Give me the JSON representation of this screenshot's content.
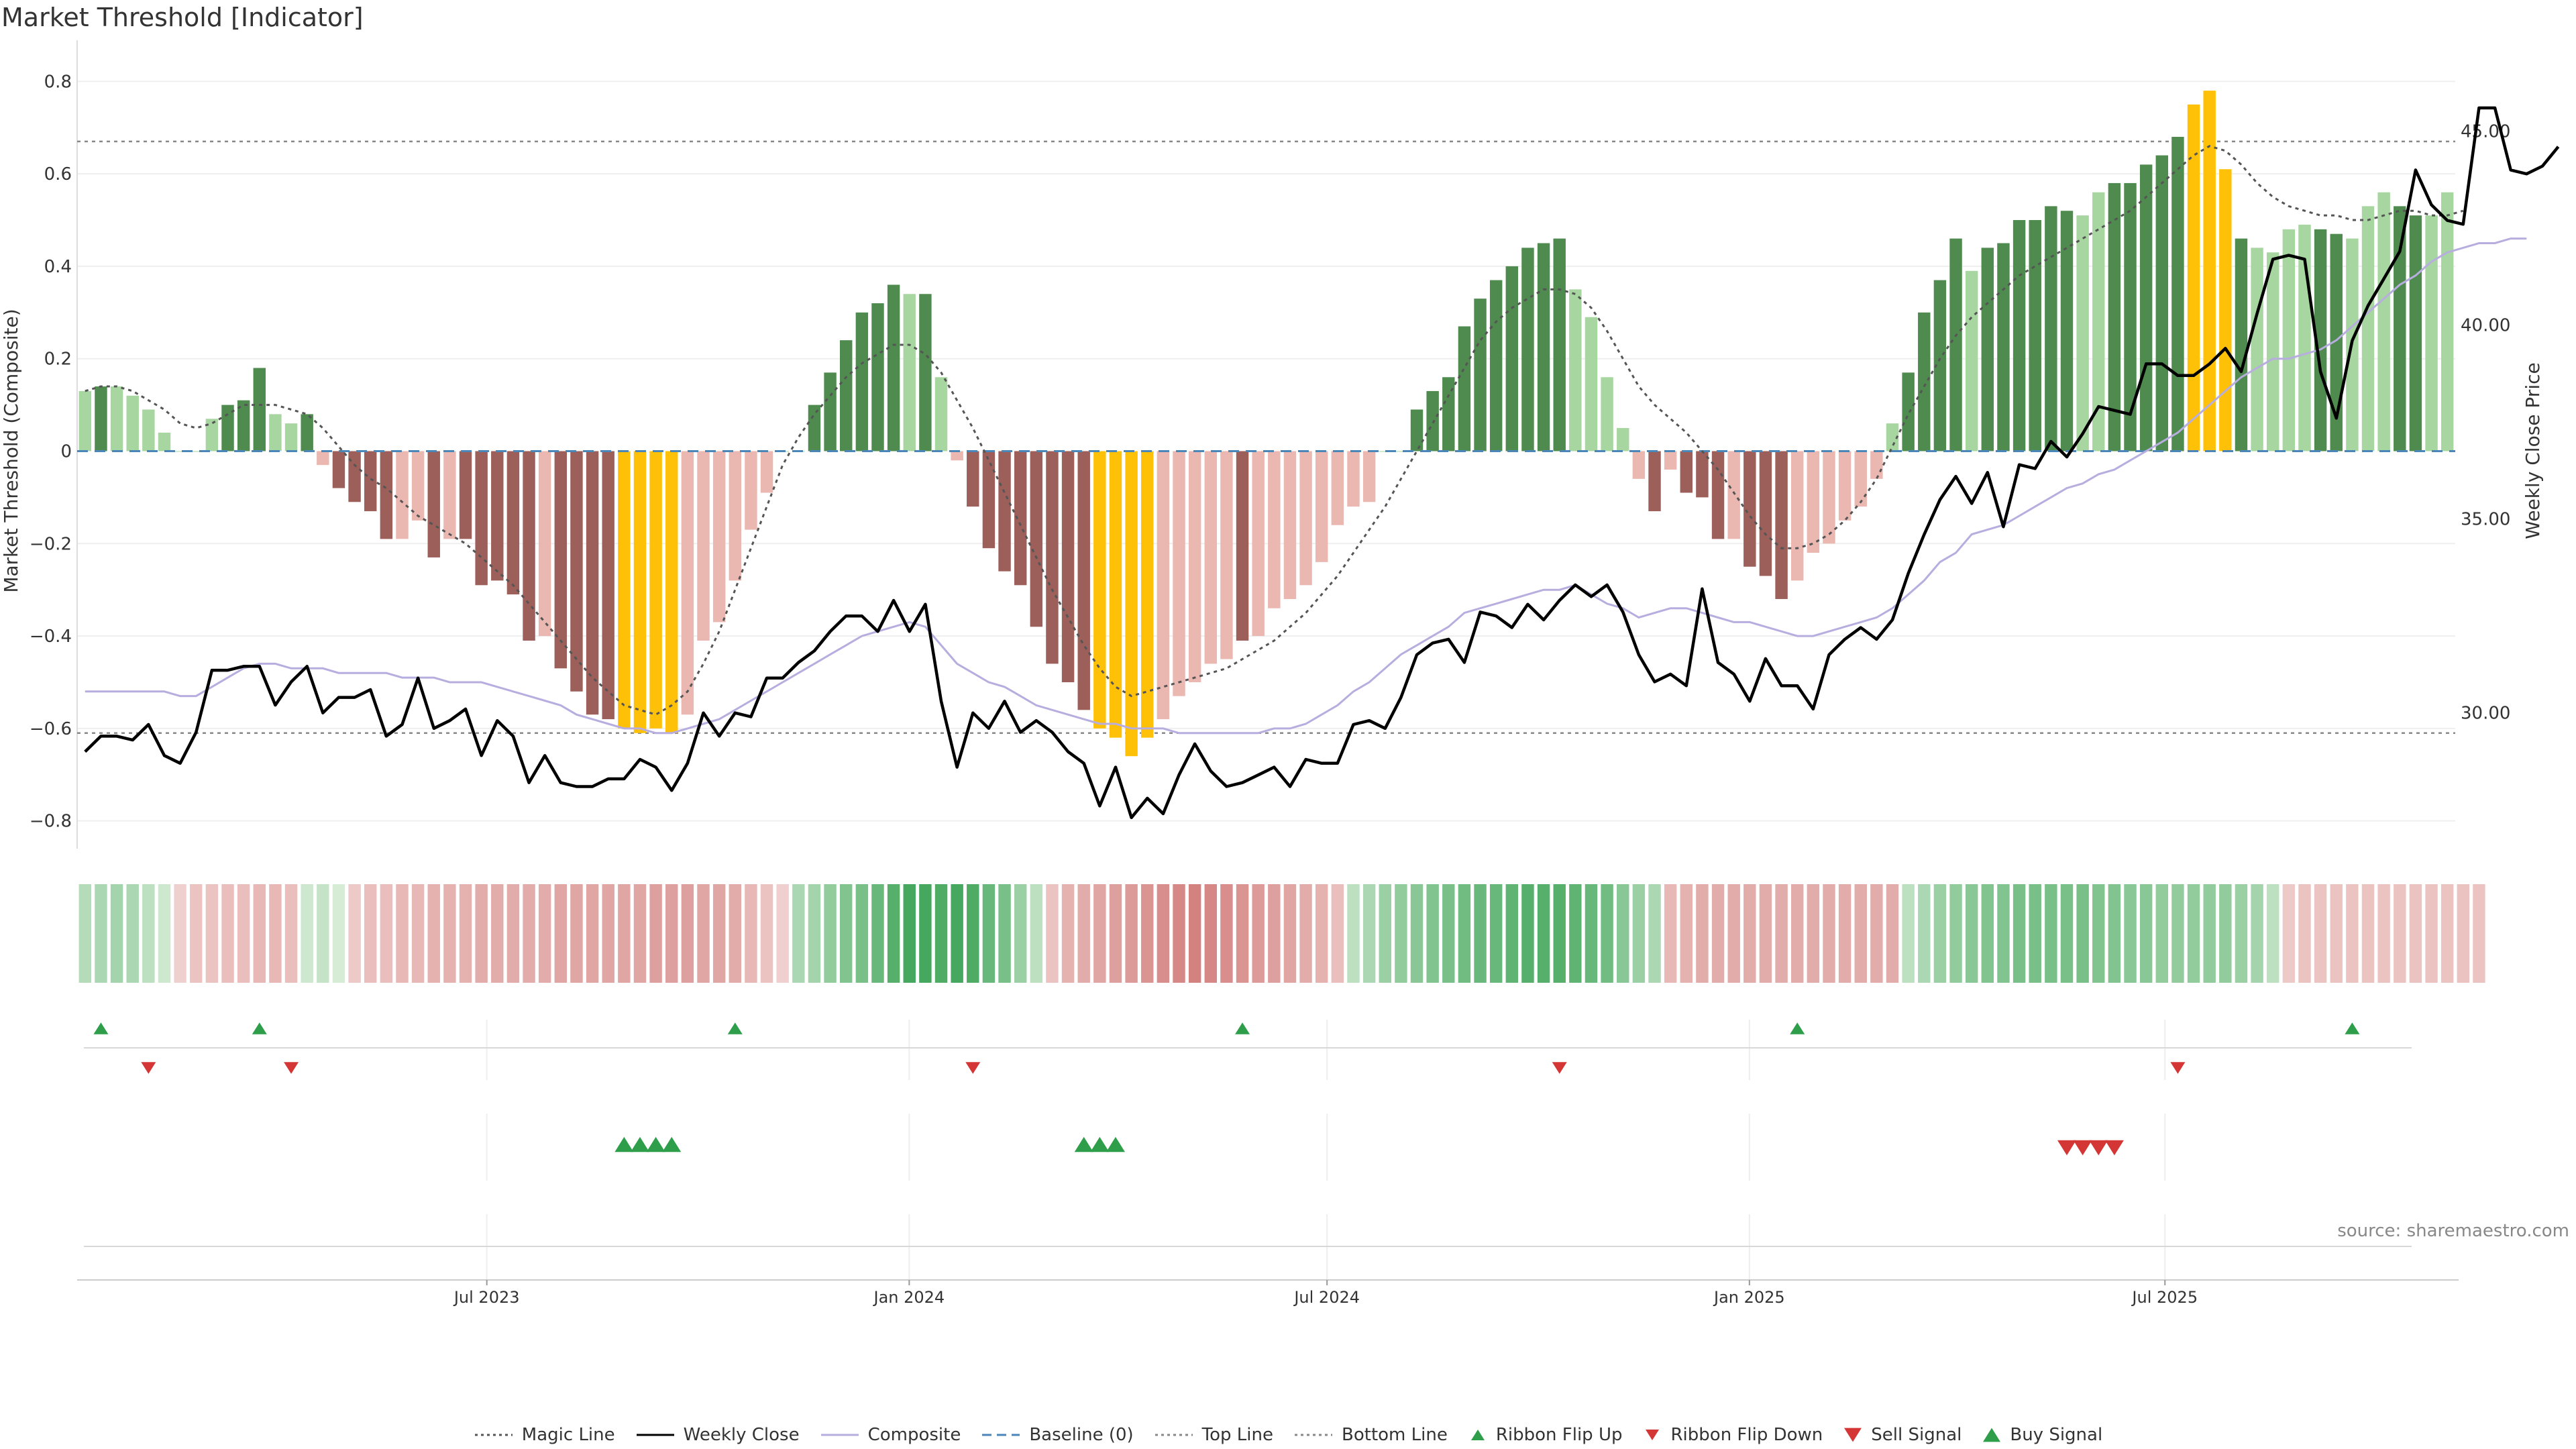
{
  "title": "Market Threshold [Indicator]",
  "source": "source: sharemaestro.com",
  "colors": {
    "bull_dark": "#4f8a4f",
    "bull_light": "#a7d6a0",
    "bear_dark": "#9c5f5a",
    "bear_light": "#eab7b1",
    "extreme": "#ffc107",
    "close": "#000000",
    "composite": "#b7addf",
    "magic": "#555555",
    "baseline": "#4a86b8",
    "up": "#2e9e4a",
    "down": "#d43535"
  },
  "legend": [
    {
      "label": "Magic Line",
      "kind": "dotted",
      "color": "#555555"
    },
    {
      "label": "Weekly Close",
      "kind": "solid",
      "color": "#000000"
    },
    {
      "label": "Composite",
      "kind": "solid",
      "color": "#b7addf"
    },
    {
      "label": "Baseline (0)",
      "kind": "dashed",
      "color": "#4a86b8"
    },
    {
      "label": "Top Line",
      "kind": "dotted",
      "color": "#888888"
    },
    {
      "label": "Bottom Line",
      "kind": "dotted",
      "color": "#888888"
    },
    {
      "label": "Ribbon Flip Up",
      "kind": "tri-up",
      "color": "#2e9e4a"
    },
    {
      "label": "Ribbon Flip Down",
      "kind": "tri-down",
      "color": "#d43535"
    },
    {
      "label": "Sell Signal",
      "kind": "tri-down-big",
      "color": "#d43535"
    },
    {
      "label": "Buy Signal",
      "kind": "tri-up-big",
      "color": "#2e9e4a"
    }
  ],
  "chart_data": {
    "type": "bar",
    "title": "Market Threshold [Indicator]",
    "ylabel": "Market Threshold (Composite)",
    "y2label": "Weekly Close Price",
    "ylim": [
      -0.86,
      0.86
    ],
    "y2lim": [
      26.5,
      47.0
    ],
    "yticks": [
      "0.8",
      "0.6",
      "0.4",
      "0.2",
      "0",
      "−0.2",
      "−0.4",
      "−0.6",
      "−0.8"
    ],
    "y2ticks": [
      "45.00",
      "40.00",
      "35.00",
      "30.00"
    ],
    "top_line": 0.67,
    "bottom_line": -0.61,
    "x_axis": {
      "start": "2023-01-07",
      "end": "2025-11-01",
      "ticks": [
        "Jul 2023",
        "Jan 2024",
        "Jul 2024",
        "Jan 2025",
        "Jul 2025"
      ]
    },
    "bars": [
      0.13,
      0.14,
      0.14,
      0.12,
      0.09,
      0.04,
      0.0,
      0.0,
      0.07,
      0.1,
      0.11,
      0.18,
      0.08,
      0.06,
      0.08,
      -0.03,
      -0.08,
      -0.11,
      -0.13,
      -0.19,
      -0.19,
      -0.15,
      -0.23,
      -0.19,
      -0.19,
      -0.29,
      -0.28,
      -0.31,
      -0.41,
      -0.4,
      -0.47,
      -0.52,
      -0.57,
      -0.58,
      -0.6,
      -0.61,
      -0.6,
      -0.61,
      -0.57,
      -0.41,
      -0.37,
      -0.28,
      -0.17,
      -0.09,
      0.0,
      0.0,
      0.1,
      0.17,
      0.24,
      0.3,
      0.32,
      0.36,
      0.34,
      0.34,
      0.16,
      -0.02,
      -0.12,
      -0.21,
      -0.26,
      -0.29,
      -0.38,
      -0.46,
      -0.5,
      -0.56,
      -0.6,
      -0.62,
      -0.66,
      -0.62,
      -0.58,
      -0.53,
      -0.5,
      -0.46,
      -0.45,
      -0.41,
      -0.4,
      -0.34,
      -0.32,
      -0.29,
      -0.24,
      -0.16,
      -0.12,
      -0.11,
      0.0,
      0.0,
      0.09,
      0.13,
      0.16,
      0.27,
      0.33,
      0.37,
      0.4,
      0.44,
      0.45,
      0.46,
      0.35,
      0.29,
      0.16,
      0.05,
      -0.06,
      -0.13,
      -0.04,
      -0.09,
      -0.1,
      -0.19,
      -0.19,
      -0.25,
      -0.27,
      -0.32,
      -0.28,
      -0.22,
      -0.2,
      -0.15,
      -0.12,
      -0.06,
      0.06,
      0.17,
      0.3,
      0.37,
      0.46,
      0.39,
      0.44,
      0.45,
      0.5,
      0.5,
      0.53,
      0.52,
      0.51,
      0.56,
      0.58,
      0.58,
      0.62,
      0.64,
      0.68,
      0.75,
      0.78,
      0.61,
      0.46,
      0.44,
      0.43,
      0.48,
      0.49,
      0.48,
      0.47,
      0.46,
      0.53,
      0.56,
      0.53,
      0.51,
      0.51,
      0.56
    ],
    "bar_shade": [
      0,
      1,
      0,
      0,
      0,
      0,
      0,
      0,
      0,
      1,
      1,
      1,
      0,
      0,
      1,
      0,
      1,
      1,
      1,
      1,
      0,
      0,
      1,
      0,
      1,
      1,
      1,
      1,
      1,
      0,
      1,
      1,
      1,
      1,
      2,
      2,
      2,
      2,
      0,
      0,
      0,
      0,
      0,
      0,
      0,
      0,
      1,
      1,
      1,
      1,
      1,
      1,
      0,
      1,
      0,
      0,
      1,
      1,
      1,
      1,
      1,
      1,
      1,
      1,
      2,
      2,
      2,
      2,
      0,
      0,
      0,
      0,
      0,
      1,
      0,
      0,
      0,
      0,
      0,
      0,
      0,
      0,
      0,
      0,
      1,
      1,
      1,
      1,
      1,
      1,
      1,
      1,
      1,
      1,
      0,
      0,
      0,
      0,
      0,
      1,
      0,
      1,
      1,
      1,
      0,
      1,
      1,
      1,
      0,
      0,
      0,
      0,
      0,
      0,
      0,
      1,
      1,
      1,
      1,
      0,
      1,
      1,
      1,
      1,
      1,
      1,
      0,
      0,
      1,
      1,
      1,
      1,
      1,
      2,
      2,
      2,
      1,
      0,
      0,
      0,
      0,
      1,
      1,
      0,
      0,
      0,
      1,
      1,
      0,
      0,
      0,
      1
    ],
    "close": [
      29.0,
      29.4,
      29.4,
      29.3,
      29.7,
      28.9,
      28.7,
      29.5,
      31.1,
      31.1,
      31.2,
      31.2,
      30.2,
      30.8,
      31.2,
      30.0,
      30.4,
      30.4,
      30.6,
      29.4,
      29.7,
      30.9,
      29.6,
      29.8,
      30.1,
      28.9,
      29.8,
      29.4,
      28.2,
      28.9,
      28.2,
      28.1,
      28.1,
      28.3,
      28.3,
      28.8,
      28.6,
      28.0,
      28.7,
      30.0,
      29.4,
      30.0,
      29.9,
      30.9,
      30.9,
      31.3,
      31.6,
      32.1,
      32.5,
      32.5,
      32.1,
      32.9,
      32.1,
      32.8,
      30.3,
      28.6,
      30.0,
      29.6,
      30.3,
      29.5,
      29.8,
      29.5,
      29.0,
      28.7,
      27.6,
      28.6,
      27.3,
      27.8,
      27.4,
      28.4,
      29.2,
      28.5,
      28.1,
      28.2,
      28.4,
      28.6,
      28.1,
      28.8,
      28.7,
      28.7,
      29.7,
      29.8,
      29.6,
      30.4,
      31.5,
      31.8,
      31.9,
      31.3,
      32.6,
      32.5,
      32.2,
      32.8,
      32.4,
      32.9,
      33.3,
      33.0,
      33.3,
      32.6,
      31.5,
      30.8,
      31.0,
      30.7,
      33.2,
      31.3,
      31.0,
      30.3,
      31.4,
      30.7,
      30.7,
      30.1,
      31.5,
      31.9,
      32.2,
      31.9,
      32.4,
      33.6,
      34.6,
      35.5,
      36.1,
      35.4,
      36.2,
      34.8,
      36.4,
      36.3,
      37.0,
      36.6,
      37.2,
      37.9,
      37.8,
      37.7,
      39.0,
      39.0,
      38.7,
      38.7,
      39.0,
      39.4,
      38.8,
      40.3,
      41.7,
      41.8,
      41.7,
      38.8,
      37.6,
      39.6,
      40.5,
      41.2,
      41.9,
      44.0,
      43.1,
      42.7,
      42.6,
      45.6,
      45.6,
      44.0,
      43.9,
      44.1,
      44.6
    ],
    "composite": [
      -0.52,
      -0.52,
      -0.52,
      -0.52,
      -0.52,
      -0.52,
      -0.53,
      -0.53,
      -0.51,
      -0.49,
      -0.47,
      -0.46,
      -0.46,
      -0.47,
      -0.47,
      -0.47,
      -0.48,
      -0.48,
      -0.48,
      -0.48,
      -0.49,
      -0.49,
      -0.49,
      -0.5,
      -0.5,
      -0.5,
      -0.51,
      -0.52,
      -0.53,
      -0.54,
      -0.55,
      -0.57,
      -0.58,
      -0.59,
      -0.6,
      -0.6,
      -0.61,
      -0.61,
      -0.6,
      -0.59,
      -0.58,
      -0.56,
      -0.54,
      -0.52,
      -0.5,
      -0.48,
      -0.46,
      -0.44,
      -0.42,
      -0.4,
      -0.39,
      -0.38,
      -0.37,
      -0.38,
      -0.42,
      -0.46,
      -0.48,
      -0.5,
      -0.51,
      -0.53,
      -0.55,
      -0.56,
      -0.57,
      -0.58,
      -0.59,
      -0.59,
      -0.6,
      -0.6,
      -0.6,
      -0.61,
      -0.61,
      -0.61,
      -0.61,
      -0.61,
      -0.61,
      -0.6,
      -0.6,
      -0.59,
      -0.57,
      -0.55,
      -0.52,
      -0.5,
      -0.47,
      -0.44,
      -0.42,
      -0.4,
      -0.38,
      -0.35,
      -0.34,
      -0.33,
      -0.32,
      -0.31,
      -0.3,
      -0.3,
      -0.29,
      -0.31,
      -0.33,
      -0.34,
      -0.36,
      -0.35,
      -0.34,
      -0.34,
      -0.35,
      -0.36,
      -0.37,
      -0.37,
      -0.38,
      -0.39,
      -0.4,
      -0.4,
      -0.39,
      -0.38,
      -0.37,
      -0.36,
      -0.34,
      -0.31,
      -0.28,
      -0.24,
      -0.22,
      -0.18,
      -0.17,
      -0.16,
      -0.14,
      -0.12,
      -0.1,
      -0.08,
      -0.07,
      -0.05,
      -0.04,
      -0.02,
      0.0,
      0.02,
      0.04,
      0.07,
      0.1,
      0.13,
      0.16,
      0.18,
      0.2,
      0.2,
      0.21,
      0.22,
      0.24,
      0.27,
      0.3,
      0.33,
      0.36,
      0.38,
      0.41,
      0.43,
      0.44,
      0.45,
      0.45,
      0.46,
      0.46
    ],
    "magic": [
      0.13,
      0.14,
      0.14,
      0.13,
      0.11,
      0.09,
      0.06,
      0.05,
      0.06,
      0.08,
      0.1,
      0.1,
      0.1,
      0.09,
      0.08,
      0.05,
      0.01,
      -0.03,
      -0.06,
      -0.08,
      -0.11,
      -0.14,
      -0.16,
      -0.18,
      -0.2,
      -0.23,
      -0.26,
      -0.29,
      -0.33,
      -0.37,
      -0.41,
      -0.45,
      -0.49,
      -0.52,
      -0.55,
      -0.56,
      -0.57,
      -0.55,
      -0.52,
      -0.46,
      -0.39,
      -0.3,
      -0.21,
      -0.12,
      -0.03,
      0.03,
      0.08,
      0.12,
      0.16,
      0.19,
      0.21,
      0.23,
      0.23,
      0.21,
      0.17,
      0.11,
      0.05,
      -0.02,
      -0.09,
      -0.16,
      -0.23,
      -0.3,
      -0.36,
      -0.42,
      -0.47,
      -0.51,
      -0.53,
      -0.52,
      -0.51,
      -0.5,
      -0.49,
      -0.48,
      -0.47,
      -0.45,
      -0.43,
      -0.41,
      -0.38,
      -0.35,
      -0.31,
      -0.27,
      -0.22,
      -0.17,
      -0.12,
      -0.06,
      0.0,
      0.06,
      0.12,
      0.18,
      0.24,
      0.28,
      0.31,
      0.33,
      0.35,
      0.35,
      0.34,
      0.31,
      0.26,
      0.2,
      0.14,
      0.1,
      0.07,
      0.04,
      0.0,
      -0.04,
      -0.09,
      -0.14,
      -0.18,
      -0.21,
      -0.21,
      -0.2,
      -0.18,
      -0.15,
      -0.11,
      -0.06,
      0.01,
      0.08,
      0.14,
      0.2,
      0.25,
      0.29,
      0.32,
      0.35,
      0.38,
      0.4,
      0.42,
      0.44,
      0.46,
      0.48,
      0.5,
      0.52,
      0.55,
      0.58,
      0.61,
      0.64,
      0.66,
      0.65,
      0.62,
      0.58,
      0.55,
      0.53,
      0.52,
      0.51,
      0.51,
      0.5,
      0.5,
      0.51,
      0.52,
      0.52,
      0.51,
      0.51,
      0.52
    ],
    "ribbon": [
      0.25,
      0.3,
      0.35,
      0.3,
      0.2,
      0.1,
      -0.1,
      -0.2,
      -0.2,
      -0.25,
      -0.25,
      -0.3,
      -0.3,
      -0.25,
      0.1,
      0.15,
      0.05,
      -0.15,
      -0.25,
      -0.25,
      -0.3,
      -0.3,
      -0.35,
      -0.35,
      -0.35,
      -0.4,
      -0.4,
      -0.4,
      -0.4,
      -0.4,
      -0.45,
      -0.45,
      -0.45,
      -0.45,
      -0.45,
      -0.45,
      -0.5,
      -0.5,
      -0.5,
      -0.45,
      -0.45,
      -0.4,
      -0.3,
      -0.2,
      -0.1,
      0.3,
      0.35,
      0.45,
      0.55,
      0.6,
      0.7,
      0.8,
      0.9,
      0.9,
      0.85,
      0.9,
      0.85,
      0.7,
      0.6,
      0.4,
      0.2,
      -0.2,
      -0.35,
      -0.4,
      -0.45,
      -0.5,
      -0.55,
      -0.6,
      -0.65,
      -0.7,
      -0.75,
      -0.7,
      -0.65,
      -0.6,
      -0.55,
      -0.5,
      -0.45,
      -0.4,
      -0.35,
      -0.25,
      0.2,
      0.3,
      0.4,
      0.45,
      0.5,
      0.55,
      0.6,
      0.65,
      0.7,
      0.7,
      0.75,
      0.8,
      0.8,
      0.8,
      0.75,
      0.7,
      0.65,
      0.5,
      0.4,
      0.3,
      -0.3,
      -0.35,
      -0.4,
      -0.4,
      -0.4,
      -0.4,
      -0.4,
      -0.4,
      -0.4,
      -0.4,
      -0.4,
      -0.4,
      -0.4,
      -0.4,
      -0.4,
      0.2,
      0.3,
      0.4,
      0.45,
      0.5,
      0.55,
      0.55,
      0.6,
      0.6,
      0.6,
      0.6,
      0.6,
      0.55,
      0.55,
      0.5,
      0.5,
      0.45,
      0.45,
      0.45,
      0.45,
      0.45,
      0.4,
      0.35,
      0.2,
      -0.15,
      -0.2,
      -0.2,
      -0.2,
      -0.2,
      -0.2,
      -0.2,
      -0.2,
      -0.2,
      -0.2,
      -0.2,
      -0.2,
      -0.2
    ],
    "ribbon_flip_up": [
      1,
      11,
      41,
      73,
      108,
      143
    ],
    "ribbon_flip_down": [
      4,
      13,
      56,
      93,
      132
    ],
    "buy_signals": [
      34,
      35,
      36,
      37,
      63,
      64,
      65
    ],
    "sell_signals": [
      125,
      126,
      127,
      128
    ]
  }
}
